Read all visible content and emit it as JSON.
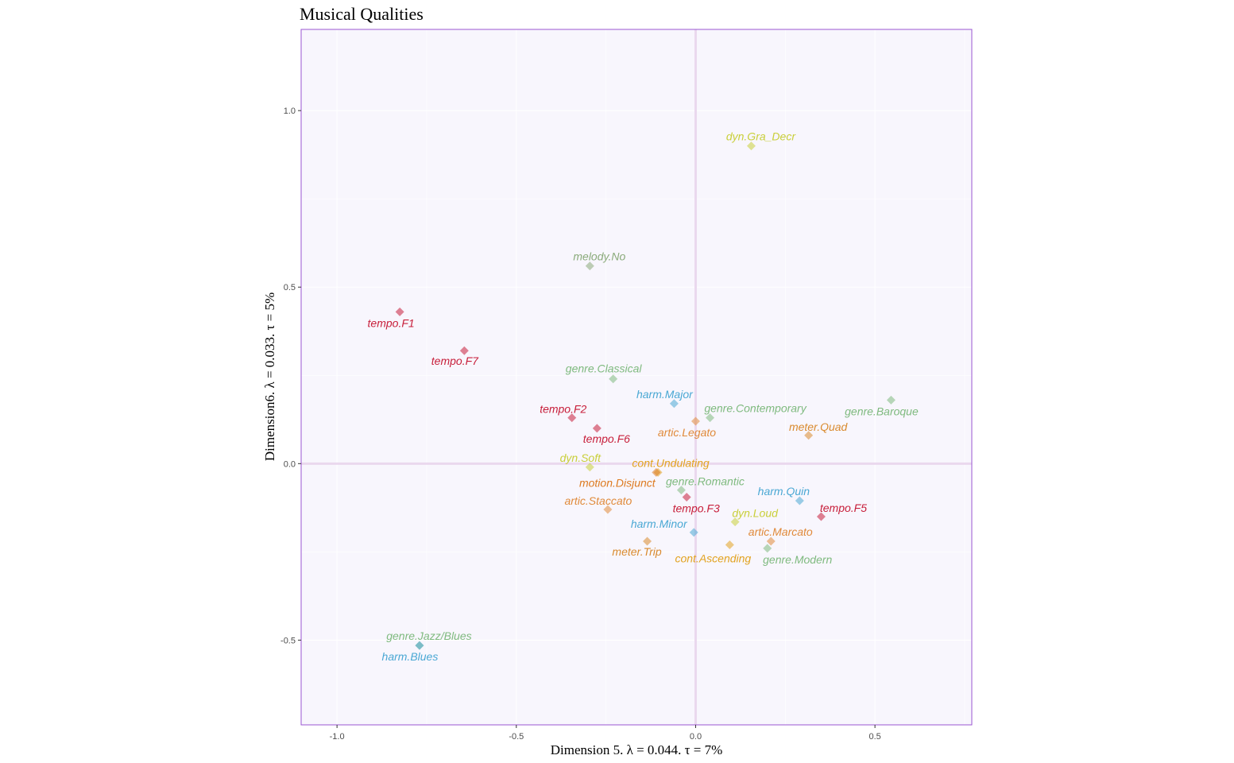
{
  "chart_data": {
    "type": "scatter",
    "title": "Musical Qualities",
    "xlabel": "Dimension 5.   λ = 0.044.  τ = 7%",
    "ylabel": "Dimension6.   λ = 0.033.  τ = 5%",
    "xlim": [
      -1.1,
      0.77
    ],
    "ylim": [
      -0.74,
      1.23
    ],
    "x_ticks": [
      -1.0,
      -0.5,
      0.0,
      0.5
    ],
    "x_tick_labels": [
      "-1.0",
      "-0.5",
      "0.0",
      "0.5"
    ],
    "y_ticks": [
      -0.5,
      0.0,
      0.5,
      1.0
    ],
    "y_tick_labels": [
      "-0.5",
      "0.0",
      "0.5",
      "1.0"
    ],
    "grid": true,
    "reference_lines": {
      "x": 0,
      "y": 0
    },
    "colors": {
      "panel_background": "#f8f6fd",
      "panel_border": "#9a55d2",
      "grid": "#ffffff",
      "reference_line": "#ead8ee",
      "tempo": "#c71e3a",
      "genre": "#7fba7f",
      "harm": "#4aa8d4",
      "dyn": "#c9cf3a",
      "artic": "#e08a3a",
      "meter": "#d98a2e",
      "cont": "#e2a320",
      "motion": "#dd7a20",
      "melody": "#8aaa7a"
    },
    "points": [
      {
        "label": "dyn.Gra_Decr",
        "group": "dyn",
        "x": 0.155,
        "y": 0.9
      },
      {
        "label": "melody.No",
        "group": "melody",
        "x": -0.295,
        "y": 0.56
      },
      {
        "label": "tempo.F1",
        "group": "tempo",
        "x": -0.825,
        "y": 0.43
      },
      {
        "label": "tempo.F7",
        "group": "tempo",
        "x": -0.645,
        "y": 0.32
      },
      {
        "label": "genre.Classical",
        "group": "genre",
        "x": -0.23,
        "y": 0.24
      },
      {
        "label": "harm.Major",
        "group": "harm",
        "x": -0.06,
        "y": 0.17
      },
      {
        "label": "genre.Baroque",
        "group": "genre",
        "x": 0.545,
        "y": 0.18
      },
      {
        "label": "tempo.F2",
        "group": "tempo",
        "x": -0.345,
        "y": 0.13
      },
      {
        "label": "genre.Contemporary",
        "group": "genre",
        "x": 0.04,
        "y": 0.13
      },
      {
        "label": "artic.Legato",
        "group": "artic",
        "x": 0.0,
        "y": 0.12
      },
      {
        "label": "tempo.F6",
        "group": "tempo",
        "x": -0.275,
        "y": 0.1
      },
      {
        "label": "meter.Quad",
        "group": "meter",
        "x": 0.315,
        "y": 0.08
      },
      {
        "label": "dyn.Soft",
        "group": "dyn",
        "x": -0.295,
        "y": -0.01
      },
      {
        "label": "cont.Undulating",
        "group": "cont",
        "x": -0.105,
        "y": -0.025
      },
      {
        "label": "motion.Disjunct",
        "group": "motion",
        "x": -0.11,
        "y": -0.025
      },
      {
        "label": "genre.Romantic",
        "group": "genre",
        "x": -0.04,
        "y": -0.075
      },
      {
        "label": "harm.Quin",
        "group": "harm",
        "x": 0.29,
        "y": -0.105
      },
      {
        "label": "tempo.F3",
        "group": "tempo",
        "x": -0.025,
        "y": -0.095
      },
      {
        "label": "artic.Staccato",
        "group": "artic",
        "x": -0.245,
        "y": -0.13
      },
      {
        "label": "tempo.F5",
        "group": "tempo",
        "x": 0.35,
        "y": -0.15
      },
      {
        "label": "dyn.Loud",
        "group": "dyn",
        "x": 0.11,
        "y": -0.165
      },
      {
        "label": "harm.Minor",
        "group": "harm",
        "x": -0.005,
        "y": -0.195
      },
      {
        "label": "artic.Marcato",
        "group": "artic",
        "x": 0.21,
        "y": -0.22
      },
      {
        "label": "meter.Trip",
        "group": "meter",
        "x": -0.135,
        "y": -0.22
      },
      {
        "label": "cont.Ascending",
        "group": "cont",
        "x": 0.095,
        "y": -0.23
      },
      {
        "label": "genre.Modern",
        "group": "genre",
        "x": 0.2,
        "y": -0.24
      },
      {
        "label": "genre.Jazz/Blues",
        "group": "genre",
        "x": -0.77,
        "y": -0.515
      },
      {
        "label": "harm.Blues",
        "group": "harm",
        "x": -0.77,
        "y": -0.515
      }
    ]
  }
}
